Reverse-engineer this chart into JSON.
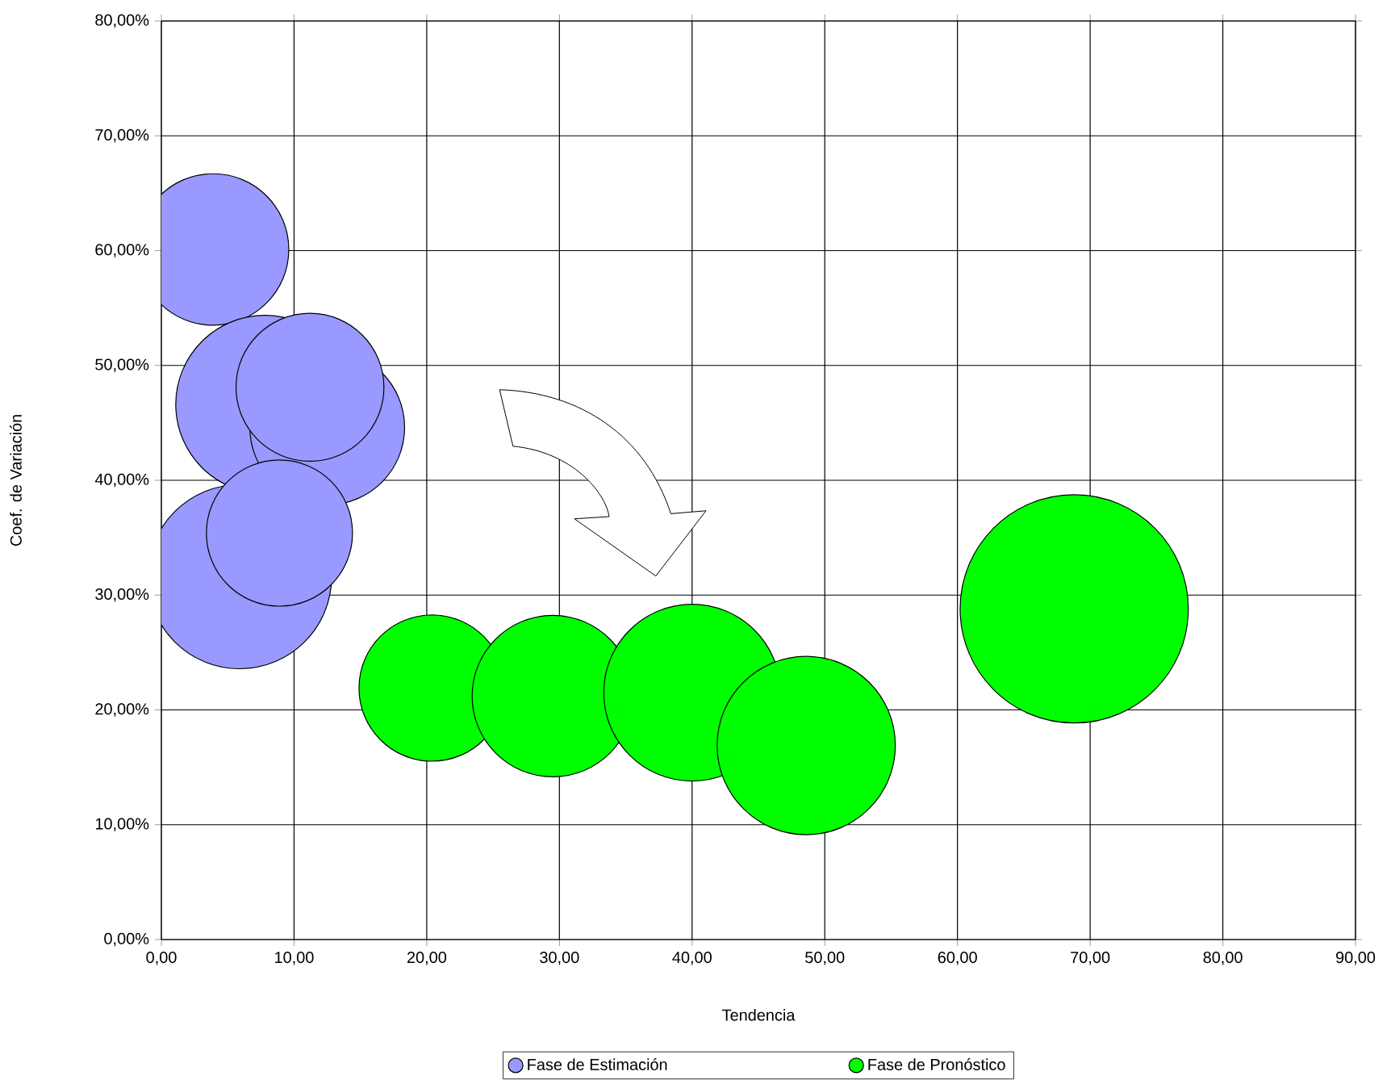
{
  "chart_data": {
    "type": "bubble",
    "xlabel": "Tendencia",
    "ylabel": "Coef. de Variación",
    "xlim": [
      0,
      90
    ],
    "ylim": [
      0,
      80
    ],
    "xticks": [
      {
        "value": 0,
        "label": "0,00"
      },
      {
        "value": 10,
        "label": "10,00"
      },
      {
        "value": 20,
        "label": "20,00"
      },
      {
        "value": 30,
        "label": "30,00"
      },
      {
        "value": 40,
        "label": "40,00"
      },
      {
        "value": 50,
        "label": "50,00"
      },
      {
        "value": 60,
        "label": "60,00"
      },
      {
        "value": 70,
        "label": "70,00"
      },
      {
        "value": 80,
        "label": "80,00"
      },
      {
        "value": 90,
        "label": "90,00"
      }
    ],
    "yticks": [
      {
        "value": 0,
        "label": "0,00%"
      },
      {
        "value": 10,
        "label": "10,00%"
      },
      {
        "value": 20,
        "label": "20,00%"
      },
      {
        "value": 30,
        "label": "30,00%"
      },
      {
        "value": 40,
        "label": "40,00%"
      },
      {
        "value": 50,
        "label": "50,00%"
      },
      {
        "value": 60,
        "label": "60,00%"
      },
      {
        "value": 70,
        "label": "70,00%"
      },
      {
        "value": 80,
        "label": "80,00%"
      }
    ],
    "grid": true,
    "legend": "bottom",
    "series": [
      {
        "name": "Fase de Estimación",
        "color": "#9999ff",
        "x": [
          3.9,
          5.9,
          7.8,
          12.5,
          11.2,
          8.9
        ],
        "values": [
          60.1,
          31.6,
          46.6,
          44.6,
          48.1,
          35.4
        ],
        "sizes": [
          0.44,
          0.65,
          0.61,
          0.46,
          0.42,
          0.41
        ]
      },
      {
        "name": "Fase de Pronóstico",
        "color": "#00ff00",
        "x": [
          20.4,
          29.5,
          40.0,
          48.6,
          68.8
        ],
        "values": [
          21.9,
          21.2,
          21.5,
          16.9,
          28.8
        ],
        "sizes": [
          0.41,
          0.5,
          0.6,
          0.61,
          1
        ]
      }
    ]
  }
}
